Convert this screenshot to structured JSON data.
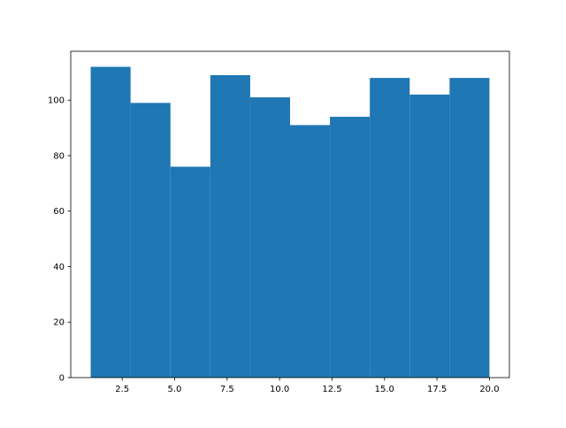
{
  "chart_data": {
    "type": "bar",
    "subtype": "histogram",
    "bin_edges": [
      1.0,
      2.9,
      4.8,
      6.7,
      8.6,
      10.5,
      12.4,
      14.3,
      16.2,
      18.1,
      20.0
    ],
    "values": [
      112,
      99,
      76,
      109,
      101,
      91,
      94,
      108,
      102,
      108
    ],
    "xlim": [
      0.05,
      20.95
    ],
    "ylim": [
      0,
      117.6
    ],
    "xticks": [
      2.5,
      5.0,
      7.5,
      10.0,
      12.5,
      15.0,
      17.5,
      20.0
    ],
    "xtick_labels": [
      "2.5",
      "5.0",
      "7.5",
      "10.0",
      "12.5",
      "15.0",
      "17.5",
      "20.0"
    ],
    "yticks": [
      0,
      20,
      40,
      60,
      80,
      100
    ],
    "ytick_labels": [
      "0",
      "20",
      "40",
      "60",
      "80",
      "100"
    ],
    "bar_color": "#1f77b4",
    "grid": false,
    "title": "",
    "xlabel": "",
    "ylabel": ""
  }
}
